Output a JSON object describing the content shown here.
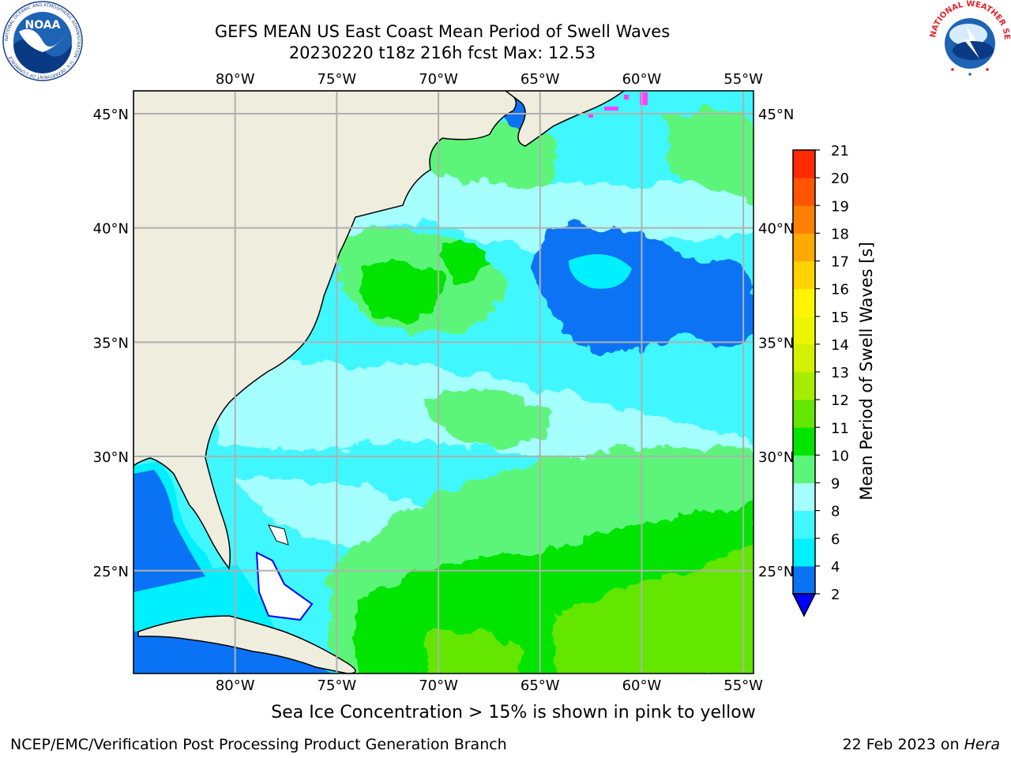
{
  "header": {
    "title_line1": "GEFS MEAN US East Coast Mean Period of Swell Waves",
    "title_line2": "20230220 t18z 216h fcst   Max: 12.53"
  },
  "logos": {
    "noaa_text": "NOAA",
    "noaa_ring_text": "NATIONAL OCEANIC AND ATMOSPHERIC ADMINISTRATION · U.S. DEPARTMENT OF COMMERCE",
    "nws_ring_text": "NATIONAL WEATHER SERVICE"
  },
  "map": {
    "lon_labels": [
      "80°W",
      "75°W",
      "70°W",
      "65°W",
      "60°W",
      "55°W"
    ],
    "lat_labels": [
      "45°N",
      "40°N",
      "35°N",
      "30°N",
      "25°N"
    ],
    "lon_values": [
      -80,
      -75,
      -70,
      -65,
      -60,
      -55
    ],
    "lat_values": [
      45,
      40,
      35,
      30,
      25
    ],
    "lon_range": [
      -85,
      -54.5
    ],
    "lat_range": [
      20.5,
      46
    ],
    "land_color": "#efedde",
    "grid_color": "#b0b0b0"
  },
  "colorbar": {
    "label": "Mean Period of Swell Waves [s]",
    "ticks": [
      "2",
      "4",
      "6",
      "8",
      "9",
      "10",
      "11",
      "12",
      "13",
      "14",
      "15",
      "16",
      "17",
      "18",
      "19",
      "20",
      "21"
    ],
    "colors": [
      "#0a73f5",
      "#00f0ff",
      "#40f7ff",
      "#a6ffff",
      "#5cf57a",
      "#00e400",
      "#64e600",
      "#a6ec00",
      "#d2f000",
      "#ecf500",
      "#fff500",
      "#ffd200",
      "#ffaa00",
      "#ff8000",
      "#ff5500",
      "#ff2a00",
      "#ff0000"
    ],
    "under_color": "#0000ff"
  },
  "ice_note": "Sea Ice Concentration > 15% is shown in pink to yellow",
  "footer": {
    "left": "NCEP/EMC/Verification Post Processing Product Generation Branch",
    "right_date": "22 Feb 2023 on ",
    "right_machine": "Hera"
  }
}
